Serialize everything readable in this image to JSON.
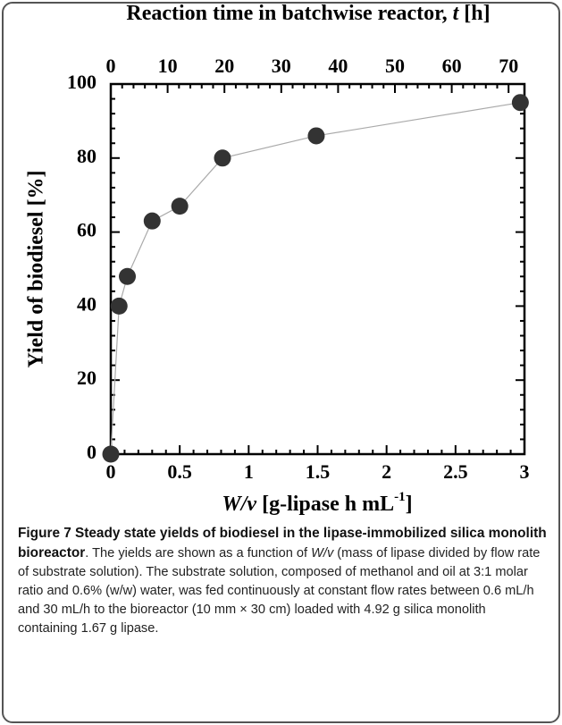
{
  "chart_data": {
    "type": "line",
    "x_label_parts": [
      "W/v",
      " [g-lipase h mL",
      "-1",
      "]"
    ],
    "x2_label_parts": [
      "Reaction time in batchwise reactor, ",
      "t",
      " [h]"
    ],
    "y_label": "Yield of biodiesel [%]",
    "xlim": [
      0,
      3
    ],
    "xticks": [
      0,
      0.5,
      1,
      1.5,
      2,
      2.5,
      3
    ],
    "x2lim": [
      0,
      72.8
    ],
    "x2ticks": [
      0,
      10,
      20,
      30,
      40,
      50,
      60,
      70
    ],
    "ylim": [
      0,
      100
    ],
    "yticks": [
      0,
      20,
      40,
      60,
      80,
      100
    ],
    "series": [
      {
        "x": [
          0,
          0.06,
          0.12,
          0.3,
          0.5,
          0.81,
          1.49,
          2.97
        ],
        "values": [
          0,
          40,
          48,
          63,
          67,
          80,
          86,
          95
        ],
        "color": "#333333",
        "line_color": "#aaaaaa"
      }
    ]
  },
  "caption": {
    "label": "Figure 7",
    "title": "Steady state yields of biodiesel in the lipase-immobilized silica monolith bioreactor",
    "text_parts": [
      ". The yields are shown as a function of ",
      "W/v",
      " (mass of lipase divided by flow rate of substrate solution). The substrate solution, composed of methanol and oil at 3:1 molar ratio and 0.6% (w/w) water, was fed continuously at constant flow rates between 0.6 mL/h and 30 mL/h to the bioreactor (10 mm × 30 cm) loaded with 4.92 g silica monolith containing 1.67 g lipase."
    ]
  }
}
